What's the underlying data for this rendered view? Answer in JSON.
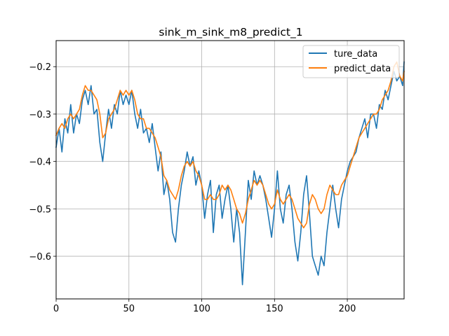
{
  "chart_data": {
    "type": "line",
    "title": "sink_m_sink_m8_predict_1",
    "xlabel": "",
    "ylabel": "",
    "xlim": [
      0,
      239
    ],
    "ylim": [
      -0.69,
      -0.145
    ],
    "xticks": [
      0,
      50,
      100,
      150,
      200
    ],
    "xtick_labels": [
      "0",
      "50",
      "100",
      "150",
      "200"
    ],
    "yticks": [
      -0.6,
      -0.5,
      -0.4,
      -0.3,
      -0.2
    ],
    "ytick_labels": [
      "−0.6",
      "−0.5",
      "−0.4",
      "−0.3",
      "−0.2"
    ],
    "grid": true,
    "legend_position": "top-right",
    "series": [
      {
        "name": "ture_data",
        "color": "#1f77b4",
        "x": [
          0,
          2,
          4,
          6,
          8,
          10,
          12,
          14,
          16,
          18,
          20,
          22,
          24,
          26,
          28,
          30,
          32,
          34,
          36,
          38,
          40,
          42,
          44,
          46,
          48,
          50,
          52,
          54,
          56,
          58,
          60,
          62,
          64,
          66,
          68,
          70,
          72,
          74,
          76,
          78,
          80,
          82,
          84,
          86,
          88,
          90,
          92,
          94,
          96,
          98,
          100,
          102,
          104,
          106,
          108,
          110,
          112,
          114,
          116,
          118,
          120,
          122,
          124,
          126,
          128,
          130,
          132,
          134,
          136,
          138,
          140,
          142,
          144,
          146,
          148,
          150,
          152,
          154,
          156,
          158,
          160,
          162,
          164,
          166,
          168,
          170,
          172,
          174,
          176,
          178,
          180,
          182,
          184,
          186,
          188,
          190,
          192,
          194,
          196,
          198,
          200,
          202,
          204,
          206,
          208,
          210,
          212,
          214,
          216,
          218,
          220,
          222,
          224,
          226,
          228,
          230,
          232,
          234,
          236,
          238,
          239
        ],
        "values": [
          -0.37,
          -0.33,
          -0.38,
          -0.31,
          -0.34,
          -0.28,
          -0.34,
          -0.3,
          -0.32,
          -0.27,
          -0.25,
          -0.28,
          -0.24,
          -0.3,
          -0.29,
          -0.36,
          -0.4,
          -0.34,
          -0.29,
          -0.33,
          -0.28,
          -0.3,
          -0.25,
          -0.28,
          -0.26,
          -0.28,
          -0.25,
          -0.3,
          -0.33,
          -0.29,
          -0.34,
          -0.33,
          -0.36,
          -0.32,
          -0.37,
          -0.42,
          -0.38,
          -0.47,
          -0.44,
          -0.48,
          -0.55,
          -0.57,
          -0.5,
          -0.45,
          -0.42,
          -0.38,
          -0.41,
          -0.39,
          -0.45,
          -0.42,
          -0.45,
          -0.52,
          -0.47,
          -0.44,
          -0.55,
          -0.47,
          -0.45,
          -0.52,
          -0.48,
          -0.45,
          -0.5,
          -0.57,
          -0.5,
          -0.55,
          -0.66,
          -0.55,
          -0.44,
          -0.48,
          -0.42,
          -0.45,
          -0.43,
          -0.45,
          -0.48,
          -0.52,
          -0.56,
          -0.5,
          -0.42,
          -0.5,
          -0.53,
          -0.47,
          -0.45,
          -0.5,
          -0.57,
          -0.61,
          -0.55,
          -0.47,
          -0.43,
          -0.51,
          -0.6,
          -0.62,
          -0.64,
          -0.6,
          -0.62,
          -0.55,
          -0.5,
          -0.45,
          -0.5,
          -0.54,
          -0.48,
          -0.45,
          -0.42,
          -0.4,
          -0.39,
          -0.38,
          -0.35,
          -0.33,
          -0.31,
          -0.35,
          -0.3,
          -0.3,
          -0.33,
          -0.28,
          -0.29,
          -0.25,
          -0.27,
          -0.24,
          -0.21,
          -0.23,
          -0.22,
          -0.24,
          -0.19
        ]
      },
      {
        "name": "predict_data",
        "color": "#ff7f0e",
        "x": [
          0,
          2,
          4,
          6,
          8,
          10,
          12,
          14,
          16,
          18,
          20,
          22,
          24,
          26,
          28,
          30,
          32,
          34,
          36,
          38,
          40,
          42,
          44,
          46,
          48,
          50,
          52,
          54,
          56,
          58,
          60,
          62,
          64,
          66,
          68,
          70,
          72,
          74,
          76,
          78,
          80,
          82,
          84,
          86,
          88,
          90,
          92,
          94,
          96,
          98,
          100,
          102,
          104,
          106,
          108,
          110,
          112,
          114,
          116,
          118,
          120,
          122,
          124,
          126,
          128,
          130,
          132,
          134,
          136,
          138,
          140,
          142,
          144,
          146,
          148,
          150,
          152,
          154,
          156,
          158,
          160,
          162,
          164,
          166,
          168,
          170,
          172,
          174,
          176,
          178,
          180,
          182,
          184,
          186,
          188,
          190,
          192,
          194,
          196,
          198,
          200,
          202,
          204,
          206,
          208,
          210,
          212,
          214,
          216,
          218,
          220,
          222,
          224,
          226,
          228,
          230,
          232,
          234,
          236,
          238,
          239
        ],
        "values": [
          -0.345,
          -0.33,
          -0.32,
          -0.33,
          -0.31,
          -0.3,
          -0.31,
          -0.3,
          -0.29,
          -0.26,
          -0.24,
          -0.25,
          -0.25,
          -0.26,
          -0.27,
          -0.3,
          -0.35,
          -0.34,
          -0.31,
          -0.3,
          -0.29,
          -0.27,
          -0.25,
          -0.26,
          -0.25,
          -0.26,
          -0.25,
          -0.27,
          -0.3,
          -0.31,
          -0.31,
          -0.33,
          -0.33,
          -0.34,
          -0.35,
          -0.37,
          -0.39,
          -0.43,
          -0.44,
          -0.46,
          -0.47,
          -0.48,
          -0.46,
          -0.43,
          -0.41,
          -0.4,
          -0.41,
          -0.4,
          -0.42,
          -0.43,
          -0.45,
          -0.48,
          -0.48,
          -0.47,
          -0.48,
          -0.48,
          -0.47,
          -0.45,
          -0.46,
          -0.45,
          -0.46,
          -0.48,
          -0.5,
          -0.51,
          -0.53,
          -0.51,
          -0.48,
          -0.46,
          -0.44,
          -0.45,
          -0.44,
          -0.45,
          -0.47,
          -0.49,
          -0.5,
          -0.49,
          -0.46,
          -0.48,
          -0.49,
          -0.48,
          -0.47,
          -0.48,
          -0.5,
          -0.52,
          -0.53,
          -0.54,
          -0.53,
          -0.49,
          -0.47,
          -0.48,
          -0.5,
          -0.51,
          -0.5,
          -0.47,
          -0.45,
          -0.46,
          -0.47,
          -0.47,
          -0.45,
          -0.44,
          -0.43,
          -0.41,
          -0.39,
          -0.37,
          -0.35,
          -0.34,
          -0.33,
          -0.32,
          -0.31,
          -0.3,
          -0.3,
          -0.29,
          -0.27,
          -0.26,
          -0.25,
          -0.23,
          -0.2,
          -0.19,
          -0.22,
          -0.23,
          -0.21
        ]
      }
    ]
  }
}
